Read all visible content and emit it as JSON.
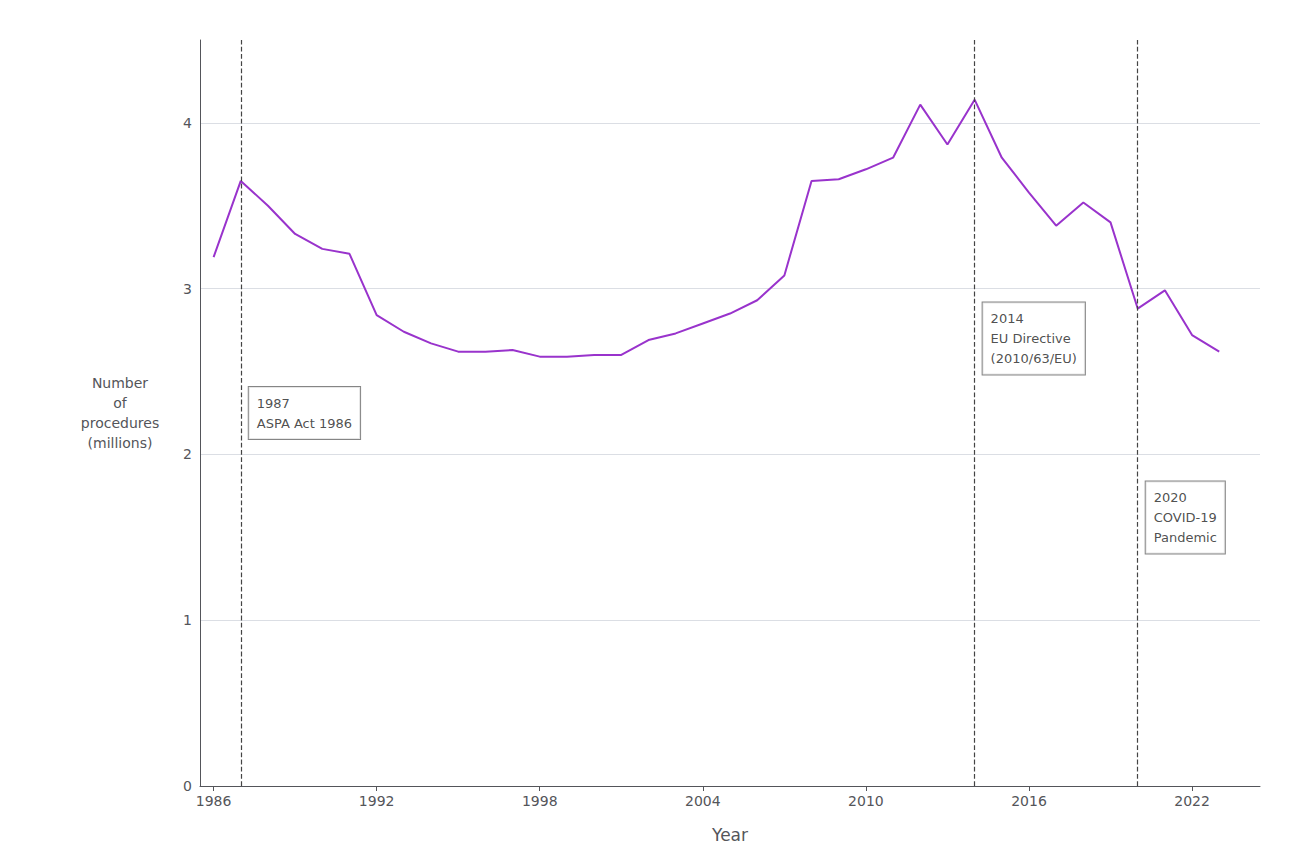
{
  "chart_data": {
    "type": "line",
    "x": [
      1986,
      1987,
      1988,
      1989,
      1990,
      1991,
      1992,
      1993,
      1994,
      1995,
      1996,
      1997,
      1998,
      1999,
      2000,
      2001,
      2002,
      2003,
      2004,
      2005,
      2006,
      2007,
      2008,
      2009,
      2010,
      2011,
      2012,
      2013,
      2014,
      2015,
      2016,
      2017,
      2018,
      2019,
      2020,
      2021,
      2022,
      2023
    ],
    "values": [
      3.19,
      3.65,
      3.5,
      3.33,
      3.24,
      3.21,
      2.84,
      2.74,
      2.67,
      2.62,
      2.62,
      2.63,
      2.59,
      2.59,
      2.6,
      2.6,
      2.69,
      2.73,
      2.79,
      2.85,
      2.93,
      3.08,
      3.65,
      3.66,
      3.72,
      3.79,
      4.11,
      3.87,
      4.14,
      3.79,
      3.58,
      3.38,
      3.52,
      3.4,
      2.88,
      2.99,
      2.72,
      2.62
    ],
    "color": "#9933CC",
    "xlabel": "Year",
    "ylabel": "Number\nof\nprocedures\n(millions)",
    "xlim": [
      1985.5,
      2024.5
    ],
    "xticks": [
      1986,
      1992,
      1998,
      2004,
      2010,
      2016,
      2022
    ],
    "ylim": [
      0,
      4.5
    ],
    "yticks": [
      0,
      1,
      2,
      3,
      4
    ],
    "grid": true,
    "annotations": [
      {
        "x": 1987,
        "y": 2.25,
        "text": "1987\nASPA Act 1986",
        "color": "#444444",
        "line_style": "dashed"
      },
      {
        "x": 2014,
        "y": 2.7,
        "text": "2014\nEU Directive\n(2010/63/EU)",
        "color": "#444444",
        "line_style": "dashed"
      },
      {
        "x": 2020,
        "y": 1.62,
        "text": "2020\nCOVID-19\nPandemic",
        "color": "#444444",
        "line_style": "dashed"
      }
    ]
  }
}
